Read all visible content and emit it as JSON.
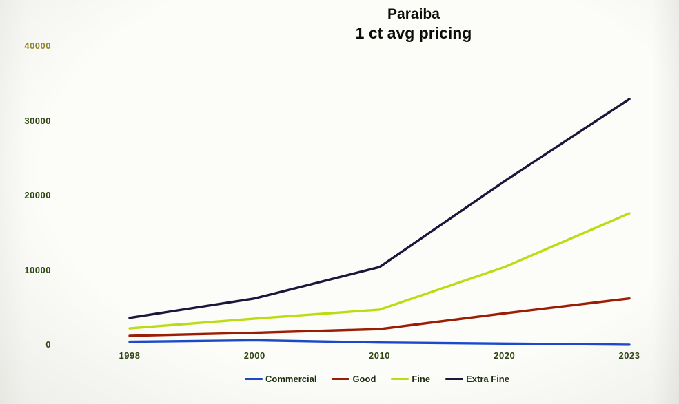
{
  "title": {
    "line1": "Paraiba",
    "line2": "1 ct avg pricing"
  },
  "colors": {
    "background": "#fcfcf9",
    "title": "#0d0d08",
    "x_tick": "#2f4312",
    "y_tick": "#2c430f",
    "y_tick_top": "#8f8428",
    "legend_text": "#1b2f10"
  },
  "chart_data": {
    "type": "line",
    "title": "Paraiba 1 ct avg pricing",
    "xlabel": "",
    "ylabel": "",
    "grid": false,
    "legend_position": "bottom",
    "categories": [
      "1998",
      "2000",
      "2010",
      "2020",
      "2023"
    ],
    "series": [
      {
        "name": "Commercial",
        "color": "#1c49cc",
        "values": [
          500,
          700,
          400,
          250,
          100
        ]
      },
      {
        "name": "Good",
        "color": "#9b1d05",
        "values": [
          1300,
          1700,
          2200,
          4300,
          6300
        ]
      },
      {
        "name": "Fine",
        "color": "#bcdc12",
        "values": [
          2300,
          3600,
          4800,
          10500,
          17700
        ]
      },
      {
        "name": "Extra Fine",
        "color": "#1c163a",
        "values": [
          3700,
          6300,
          10500,
          22000,
          33000
        ]
      }
    ],
    "ylim": [
      0,
      40000
    ],
    "y_ticks": [
      "40000",
      "30000",
      "20000",
      "10000",
      "0"
    ],
    "y_tick_values": [
      40000,
      30000,
      20000,
      10000,
      0
    ]
  }
}
